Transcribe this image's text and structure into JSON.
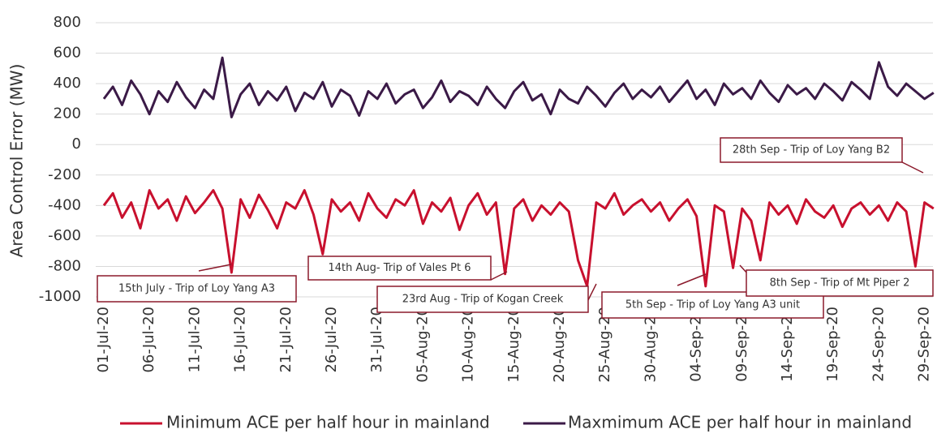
{
  "chart_data": {
    "type": "line",
    "y_label": "Area Control Error (MW)",
    "categories": [
      "01-Jul-20",
      null,
      null,
      null,
      null,
      "06-Jul-20",
      null,
      null,
      null,
      null,
      "11-Jul-20",
      null,
      null,
      null,
      null,
      "16-Jul-20",
      null,
      null,
      null,
      null,
      "21-Jul-20",
      null,
      null,
      null,
      null,
      "26-Jul-20",
      null,
      null,
      null,
      null,
      "31-Jul-20",
      null,
      null,
      null,
      null,
      "05-Aug-20",
      null,
      null,
      null,
      null,
      "10-Aug-20",
      null,
      null,
      null,
      null,
      "15-Aug-20",
      null,
      null,
      null,
      null,
      "20-Aug-20",
      null,
      null,
      null,
      null,
      "25-Aug-20",
      null,
      null,
      null,
      null,
      "30-Aug-20",
      null,
      null,
      null,
      null,
      "04-Sep-20",
      null,
      null,
      null,
      null,
      "09-Sep-20",
      null,
      null,
      null,
      null,
      "14-Sep-20",
      null,
      null,
      null,
      null,
      "19-Sep-20",
      null,
      null,
      null,
      null,
      "24-Sep-20",
      null,
      null,
      null,
      null,
      "29-Sep-20",
      null
    ],
    "series": [
      {
        "name": "Minimum ACE per half hour in mainland",
        "color": "#c8102e",
        "values": [
          -400,
          -320,
          -480,
          -380,
          -550,
          -300,
          -420,
          -360,
          -500,
          -340,
          -450,
          -380,
          -300,
          -420,
          -840,
          -360,
          -480,
          -330,
          -430,
          -550,
          -380,
          -420,
          -300,
          -460,
          -720,
          -360,
          -440,
          -380,
          -500,
          -320,
          -420,
          -480,
          -360,
          -400,
          -300,
          -520,
          -380,
          -440,
          -350,
          -560,
          -400,
          -320,
          -460,
          -380,
          -850,
          -420,
          -360,
          -500,
          -400,
          -460,
          -380,
          -440,
          -760,
          -930,
          -380,
          -420,
          -320,
          -460,
          -400,
          -360,
          -440,
          -380,
          -500,
          -420,
          -360,
          -470,
          -930,
          -400,
          -440,
          -810,
          -420,
          -500,
          -760,
          -380,
          -460,
          -400,
          -520,
          -360,
          -440,
          -480,
          -400,
          -540,
          -420,
          -380,
          -460,
          -400,
          -500,
          -380,
          -440,
          -800,
          -380,
          -420
        ]
      },
      {
        "name": "Maxmimum ACE per half hour in mainland",
        "color": "#3b1a47",
        "values": [
          300,
          380,
          260,
          420,
          330,
          200,
          350,
          280,
          410,
          310,
          240,
          360,
          300,
          570,
          180,
          330,
          400,
          260,
          350,
          290,
          380,
          220,
          340,
          300,
          410,
          250,
          360,
          320,
          190,
          350,
          300,
          400,
          270,
          330,
          360,
          240,
          310,
          420,
          280,
          350,
          320,
          260,
          380,
          300,
          240,
          350,
          410,
          290,
          330,
          200,
          360,
          300,
          270,
          380,
          320,
          250,
          340,
          400,
          300,
          360,
          310,
          380,
          280,
          350,
          420,
          300,
          360,
          260,
          400,
          330,
          370,
          300,
          420,
          340,
          280,
          390,
          330,
          370,
          300,
          400,
          350,
          290,
          410,
          360,
          300,
          540,
          380,
          320,
          400,
          350,
          300,
          340
        ]
      }
    ],
    "ylim": [
      -1000,
      800
    ],
    "yticks": [
      -1000,
      -800,
      -600,
      -400,
      -200,
      0,
      200,
      400,
      600,
      800
    ],
    "grid": true,
    "annotations": [
      "15th July - Trip of Loy Yang A3",
      "14th Aug- Trip of Vales Pt 6",
      "23rd Aug - Trip of Kogan Creek",
      "5th Sep - Trip of Loy Yang A3 unit",
      "8th Sep - Trip of Mt Piper 2",
      "28th Sep - Trip of Loy Yang B2"
    ]
  }
}
